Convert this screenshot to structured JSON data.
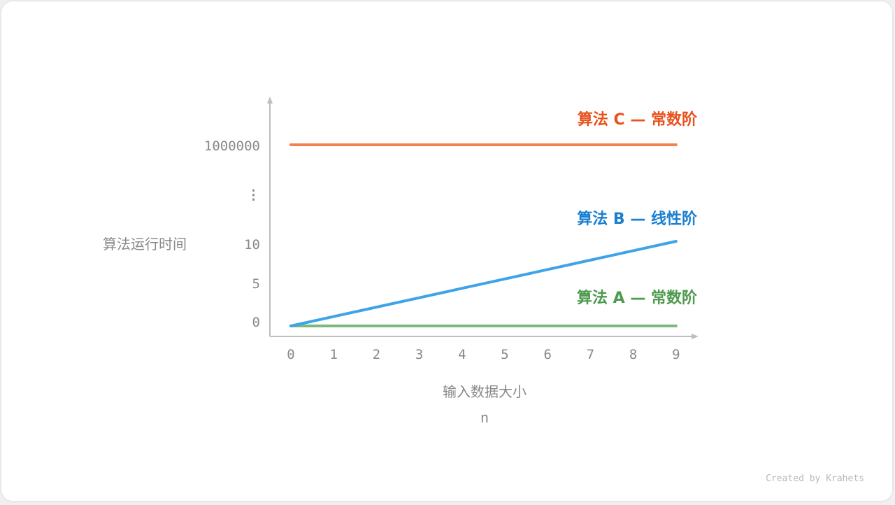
{
  "chart_data": {
    "type": "line",
    "xlabel": "输入数据大小",
    "xlabel_symbol": "n",
    "ylabel": "算法运行时间",
    "x": [
      0,
      1,
      2,
      3,
      4,
      5,
      6,
      7,
      8,
      9
    ],
    "x_tick_labels": [
      "0",
      "1",
      "2",
      "3",
      "4",
      "5",
      "6",
      "7",
      "8",
      "9"
    ],
    "y_tick_labels": [
      "0",
      "5",
      "10",
      "⋮",
      "1000000"
    ],
    "grid": false,
    "series": [
      {
        "name": "算法 A — 常数阶",
        "values": [
          1,
          1,
          1,
          1,
          1,
          1,
          1,
          1,
          1,
          1
        ],
        "line_color": "#7cb87c",
        "label_color": "#4e9a4e"
      },
      {
        "name": "算法 B — 线性阶",
        "values": [
          1,
          2,
          3,
          4,
          5,
          6,
          7,
          8,
          9,
          10
        ],
        "line_color": "#3fa3e8",
        "label_color": "#1b80d0"
      },
      {
        "name": "算法 C — 常数阶",
        "values": [
          1000000,
          1000000,
          1000000,
          1000000,
          1000000,
          1000000,
          1000000,
          1000000,
          1000000,
          1000000
        ],
        "line_color": "#f47f4f",
        "label_color": "#e8521c"
      }
    ]
  },
  "credit": "Created by Krahets"
}
